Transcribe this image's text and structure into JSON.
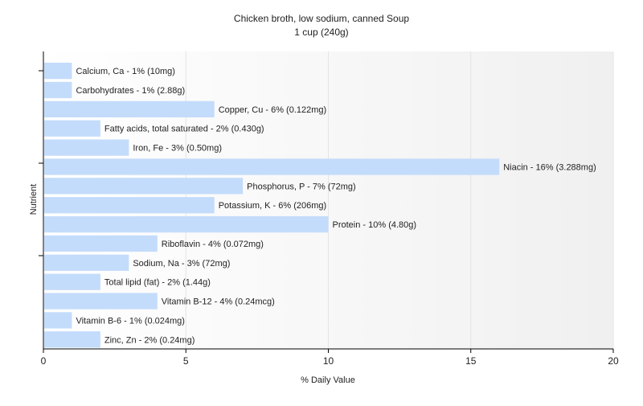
{
  "chart_data": {
    "type": "bar",
    "orientation": "horizontal",
    "title": "Chicken broth, low sodium, canned Soup",
    "subtitle": "1 cup (240g)",
    "xlabel": "% Daily Value",
    "ylabel": "Nutrient",
    "xlim": [
      0,
      20
    ],
    "xticks": [
      0,
      5,
      10,
      15,
      20
    ],
    "grid": true,
    "bar_color": "#c4dcfb",
    "categories": [
      "Calcium, Ca",
      "Carbohydrates",
      "Copper, Cu",
      "Fatty acids, total saturated",
      "Iron, Fe",
      "Niacin",
      "Phosphorus, P",
      "Potassium, K",
      "Protein",
      "Riboflavin",
      "Sodium, Na",
      "Total lipid (fat)",
      "Vitamin B-12",
      "Vitamin B-6",
      "Zinc, Zn"
    ],
    "values": [
      1,
      1,
      6,
      2,
      3,
      16,
      7,
      6,
      10,
      4,
      3,
      2,
      4,
      1,
      2
    ],
    "labels": [
      "Calcium, Ca - 1% (10mg)",
      "Carbohydrates - 1% (2.88g)",
      "Copper, Cu - 6% (0.122mg)",
      "Fatty acids, total saturated - 2% (0.430g)",
      "Iron, Fe - 3% (0.50mg)",
      "Niacin - 16% (3.288mg)",
      "Phosphorus, P - 7% (72mg)",
      "Potassium, K - 6% (206mg)",
      "Protein - 10% (4.80g)",
      "Riboflavin - 4% (0.072mg)",
      "Sodium, Na - 3% (72mg)",
      "Total lipid (fat) - 2% (1.44g)",
      "Vitamin B-12 - 4% (0.24mcg)",
      "Vitamin B-6 - 1% (0.024mg)",
      "Zinc, Zn - 2% (0.24mg)"
    ]
  }
}
